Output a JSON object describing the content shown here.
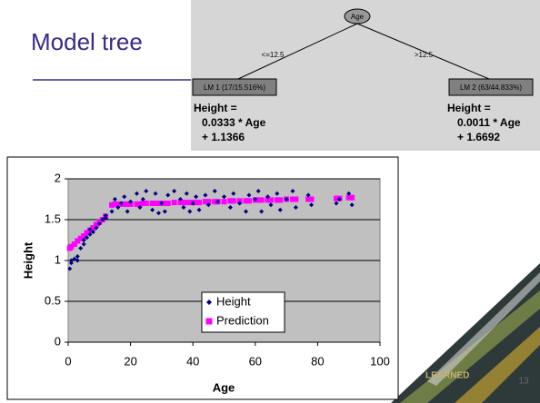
{
  "slide": {
    "title": "Model tree",
    "number": "13",
    "decor_text": "LEARNED"
  },
  "tree": {
    "root": "Age",
    "edges": [
      "<=12.5",
      ">12.5"
    ],
    "leaves": [
      {
        "label": "LM 1 (17/15.516%)",
        "formula": [
          "Height =",
          "0.0333 * Age",
          "+ 1.1366"
        ]
      },
      {
        "label": "LM 2 (63/44.833%)",
        "formula": [
          "Height =",
          "0.0011 * Age",
          "+ 1.6692"
        ]
      }
    ]
  },
  "chart_data": {
    "type": "scatter",
    "x_label": "Age",
    "y_label": "Height",
    "xlim": [
      0,
      100
    ],
    "xticks": [
      0,
      20,
      40,
      60,
      80,
      100
    ],
    "ylim": [
      0,
      2
    ],
    "yticks": [
      0,
      0.5,
      1,
      1.5,
      2
    ],
    "grid": true,
    "legend": "bottom-center",
    "series": [
      {
        "name": "Height",
        "color": "#000080",
        "marker": "diamond",
        "x": [
          0.5,
          1,
          1,
          2,
          3,
          3,
          4,
          5,
          5,
          6,
          7,
          7,
          8,
          9,
          10,
          11,
          12,
          12,
          14,
          15,
          16,
          17,
          18,
          19,
          20,
          22,
          23,
          24,
          25,
          27,
          28,
          29,
          30,
          31,
          32,
          34,
          36,
          37,
          38,
          39,
          40,
          41,
          42,
          44,
          45,
          47,
          48,
          50,
          52,
          53,
          55,
          57,
          58,
          60,
          61,
          62,
          64,
          65,
          67,
          68,
          70,
          72,
          73,
          77,
          78,
          86,
          87,
          90,
          91
        ],
        "values": [
          0.9,
          1.0,
          0.97,
          1.02,
          1.05,
          1.0,
          1.15,
          1.2,
          1.25,
          1.28,
          1.32,
          1.38,
          1.35,
          1.4,
          1.45,
          1.5,
          1.55,
          1.52,
          1.6,
          1.75,
          1.65,
          1.7,
          1.78,
          1.6,
          1.72,
          1.82,
          1.65,
          1.75,
          1.85,
          1.62,
          1.82,
          1.58,
          1.7,
          1.6,
          1.8,
          1.85,
          1.75,
          1.65,
          1.82,
          1.6,
          1.7,
          1.78,
          1.62,
          1.8,
          1.68,
          1.85,
          1.72,
          1.78,
          1.65,
          1.82,
          1.7,
          1.6,
          1.8,
          1.75,
          1.85,
          1.6,
          1.78,
          1.68,
          1.82,
          1.62,
          1.75,
          1.85,
          1.65,
          1.8,
          1.68,
          1.7,
          1.75,
          1.82,
          1.68
        ]
      },
      {
        "name": "Prediction",
        "color": "#ff00ff",
        "marker": "square",
        "x": [
          0.5,
          1,
          2,
          3,
          4,
          5,
          6,
          7,
          8,
          9,
          10,
          11,
          12,
          14,
          15,
          16,
          17,
          18,
          19,
          20,
          22,
          23,
          24,
          25,
          27,
          28,
          29,
          30,
          31,
          32,
          34,
          36,
          37,
          38,
          39,
          40,
          41,
          42,
          44,
          45,
          47,
          48,
          50,
          52,
          53,
          55,
          57,
          58,
          60,
          61,
          62,
          64,
          65,
          67,
          68,
          70,
          72,
          73,
          77,
          78,
          86,
          87,
          90,
          91
        ],
        "values": [
          1.15,
          1.17,
          1.2,
          1.24,
          1.27,
          1.3,
          1.34,
          1.37,
          1.4,
          1.44,
          1.47,
          1.5,
          1.54,
          1.68,
          1.69,
          1.69,
          1.69,
          1.69,
          1.69,
          1.69,
          1.69,
          1.69,
          1.7,
          1.7,
          1.7,
          1.7,
          1.7,
          1.7,
          1.7,
          1.7,
          1.71,
          1.71,
          1.71,
          1.71,
          1.71,
          1.71,
          1.71,
          1.71,
          1.72,
          1.72,
          1.72,
          1.72,
          1.72,
          1.73,
          1.73,
          1.73,
          1.73,
          1.73,
          1.74,
          1.74,
          1.74,
          1.74,
          1.74,
          1.74,
          1.74,
          1.75,
          1.75,
          1.75,
          1.75,
          1.75,
          1.76,
          1.76,
          1.77,
          1.77
        ]
      }
    ]
  }
}
